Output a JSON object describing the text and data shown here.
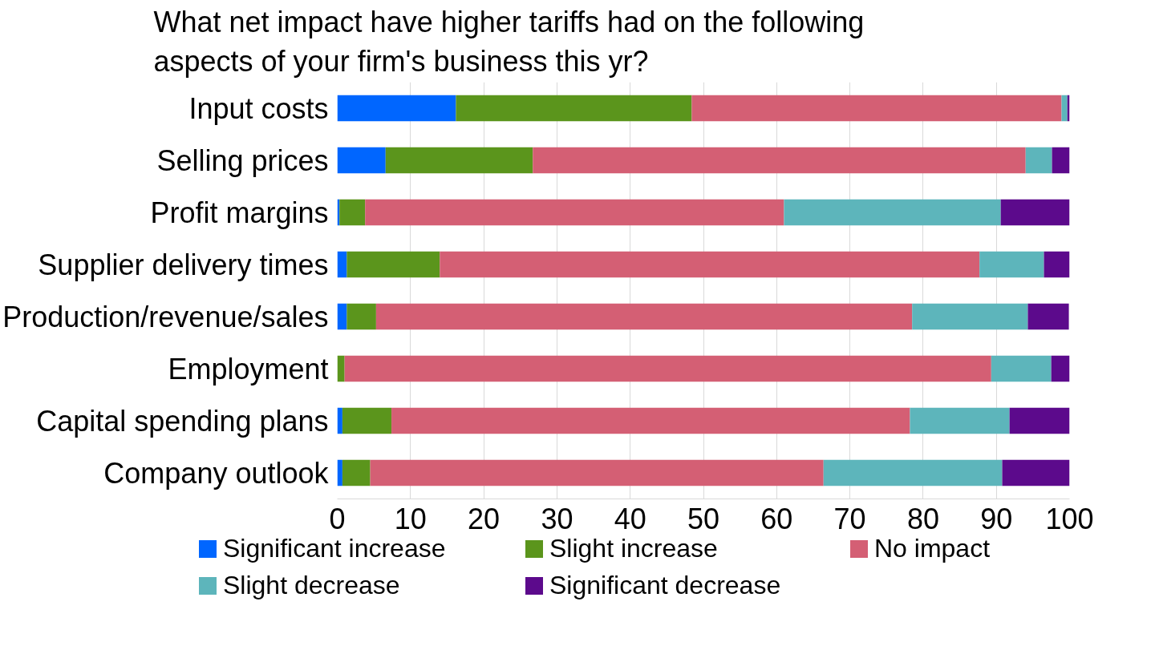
{
  "chart_data": {
    "type": "bar",
    "orientation": "horizontal",
    "stacked": true,
    "title": "What net impact have higher tariffs had on the following aspects of your firm's business this yr?",
    "categories": [
      "Input costs",
      "Selling prices",
      "Profit margins",
      "Supplier delivery times",
      "Production/revenue/sales",
      "Employment",
      "Capital spending plans",
      "Company outlook"
    ],
    "series": [
      {
        "name": "Significant increase",
        "color": "#0066ff",
        "values": [
          16.2,
          6.6,
          0.3,
          1.3,
          1.3,
          0,
          0.7,
          0.7
        ]
      },
      {
        "name": "Slight increase",
        "color": "#5b951c",
        "values": [
          32.2,
          20.1,
          3.5,
          12.7,
          4.0,
          1.0,
          6.7,
          3.8
        ]
      },
      {
        "name": "No impact",
        "color": "#d45f74",
        "values": [
          50.5,
          67.3,
          57.2,
          73.7,
          73.2,
          88.3,
          70.8,
          61.9
        ]
      },
      {
        "name": "Slight decrease",
        "color": "#5db5bb",
        "values": [
          0.8,
          3.6,
          29.6,
          8.8,
          15.8,
          8.2,
          13.6,
          24.4
        ]
      },
      {
        "name": "Significant decrease",
        "color": "#5c0a8c",
        "values": [
          0.3,
          2.4,
          9.4,
          3.5,
          5.6,
          2.5,
          8.2,
          9.2
        ]
      }
    ],
    "xlim": [
      0,
      100
    ],
    "xticks": [
      0,
      10,
      20,
      30,
      40,
      50,
      60,
      70,
      80,
      90,
      100
    ],
    "grid": "x",
    "legend": "bottom"
  }
}
